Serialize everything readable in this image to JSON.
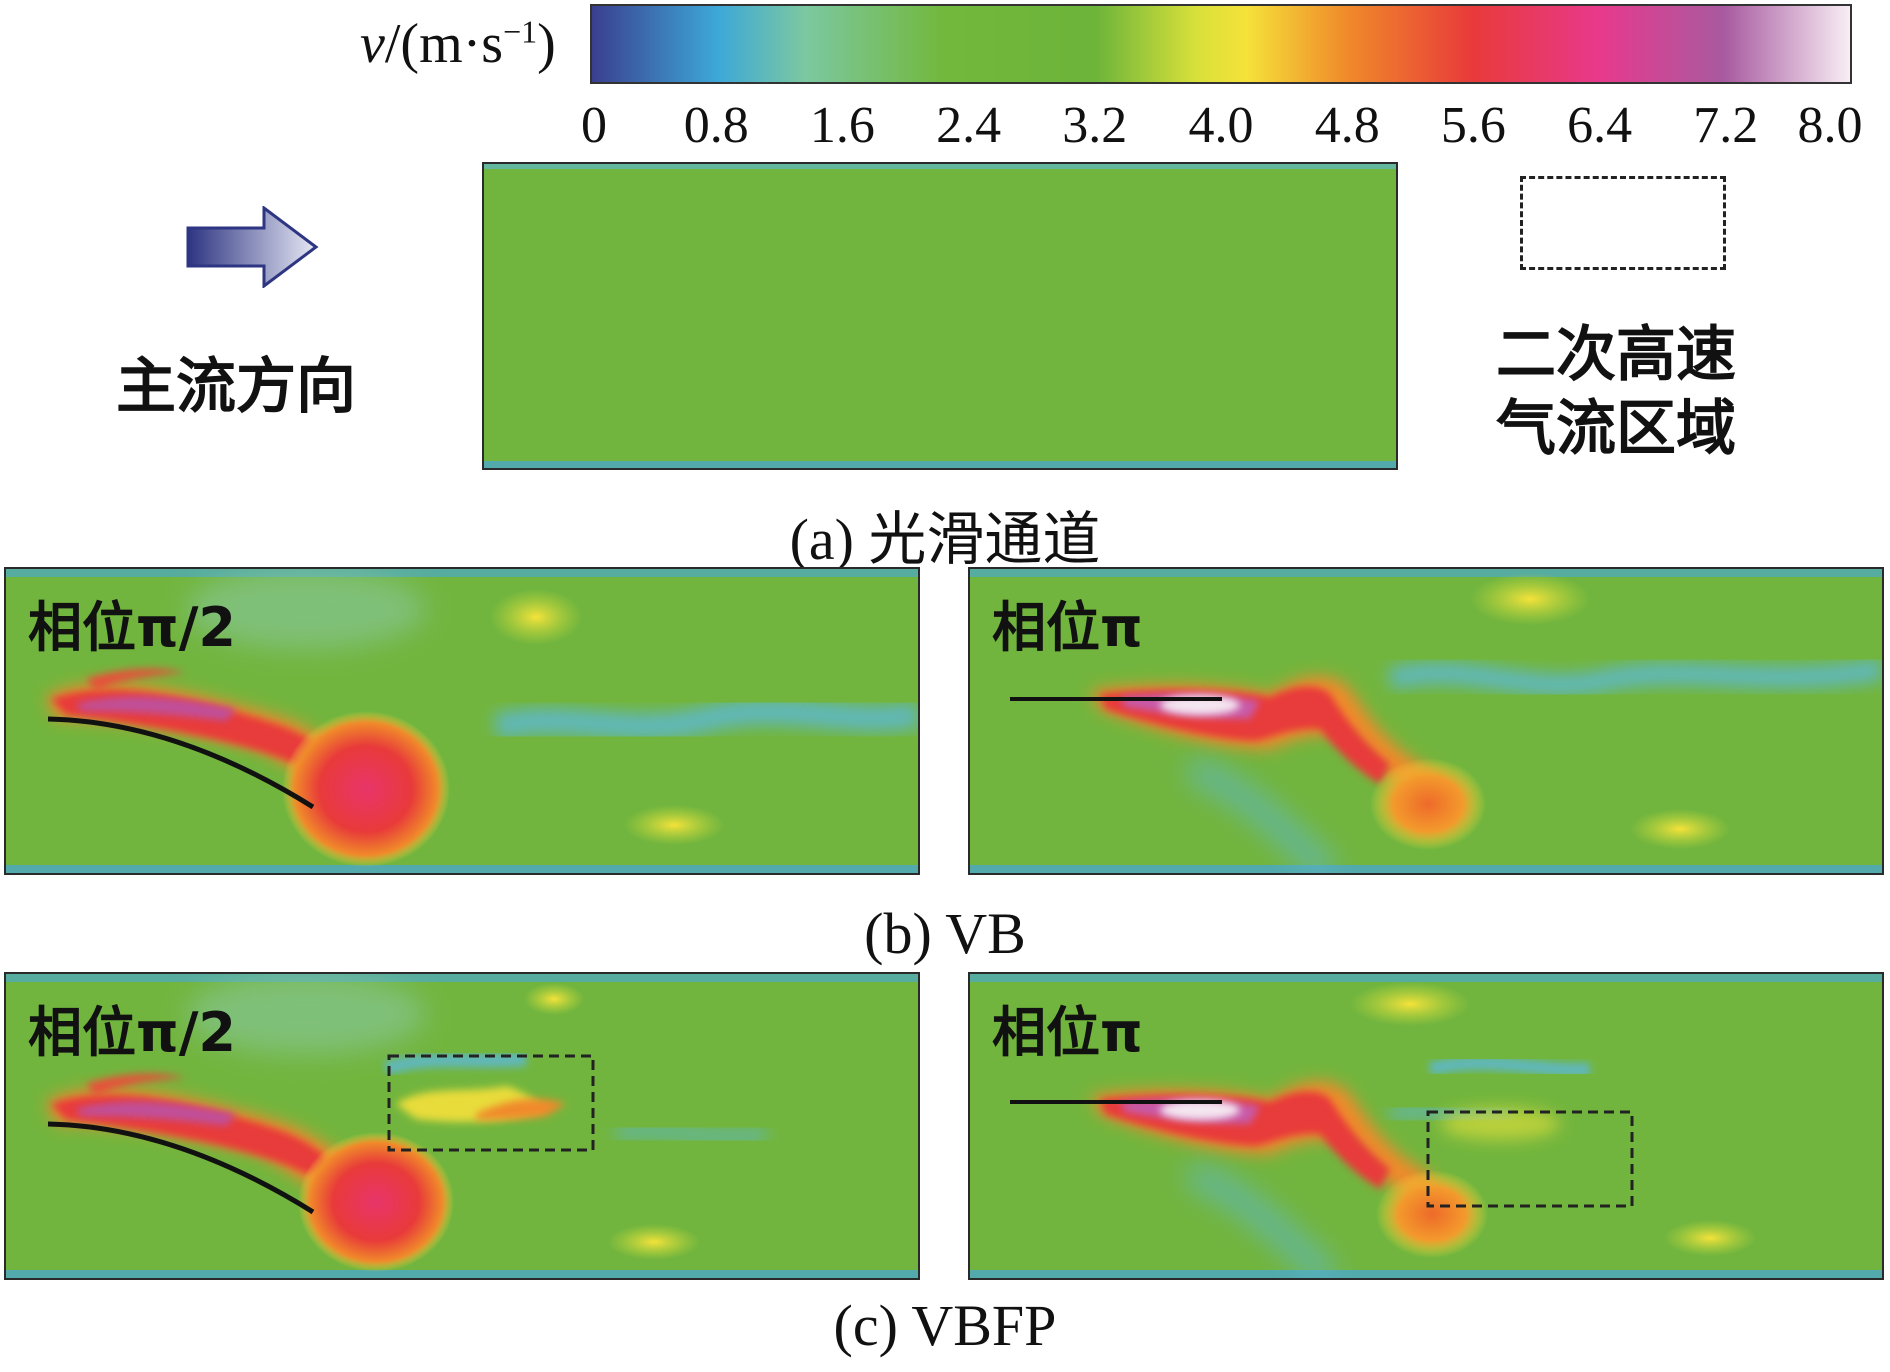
{
  "colorbar": {
    "label_italic": "v",
    "label_rest": "/(m·s",
    "label_sup": "−1",
    "label_close": ")",
    "ticks": [
      "0",
      "0.8",
      "1.6",
      "2.4",
      "3.2",
      "4.0",
      "4.8",
      "5.6",
      "6.4",
      "7.2",
      "8.0"
    ],
    "colors": [
      "#3a3f8f",
      "#3da8d8",
      "#7cc8a0",
      "#72b83c",
      "#6cb43a",
      "#e8e23a",
      "#f08a2a",
      "#e83a3a",
      "#e8398c",
      "#a85aa0",
      "#f8eef4"
    ]
  },
  "legend": {
    "flow_direction_label": "主流方向",
    "secondary_region_label_line1": "二次高速",
    "secondary_region_label_line2": "气流区域"
  },
  "captions": {
    "a": "(a) 光滑通道",
    "b": "(b) VB",
    "c": "(c) VBFP"
  },
  "panels": {
    "b_left_label": "相位π/2",
    "b_right_label": "相位π",
    "c_left_label": "相位π/2",
    "c_right_label": "相位π"
  }
}
